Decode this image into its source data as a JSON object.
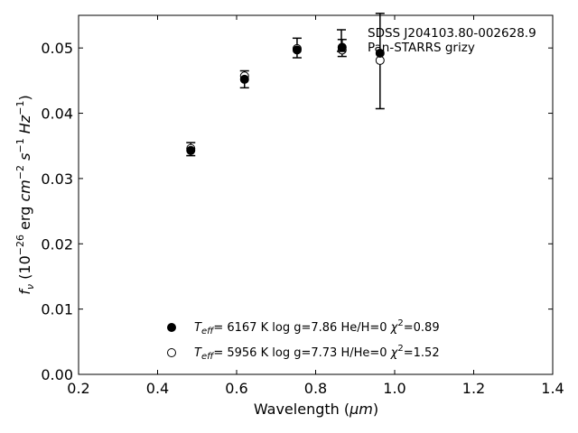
{
  "chart_data": {
    "type": "scatter",
    "xlabel_text": "Wavelength (",
    "xlabel_unit": "μm",
    "xlabel_close": ")",
    "ylabel": "f_ν (10^−26 erg cm^−2 s^−1 Hz^−1)",
    "xlim": [
      0.2,
      1.4
    ],
    "ylim": [
      0.0,
      0.055
    ],
    "x_ticks": [
      0.2,
      0.4,
      0.6,
      0.8,
      1.0,
      1.2,
      1.4
    ],
    "x_tick_labels": [
      "0.2",
      "0.4",
      "0.6",
      "0.8",
      "1.0",
      "1.2",
      "1.4"
    ],
    "y_ticks": [
      0.0,
      0.01,
      0.02,
      0.03,
      0.04,
      0.05
    ],
    "y_tick_labels": [
      "0.00",
      "0.01",
      "0.02",
      "0.03",
      "0.04",
      "0.05"
    ],
    "grid": false,
    "legend_position": "top-right",
    "observed": {
      "name_line1": "SDSS J204103.80-002628.9",
      "name_line2": "Pan-STARRS grizy",
      "x": [
        0.484,
        0.62,
        0.753,
        0.867,
        0.963
      ],
      "y": [
        0.0345,
        0.0452,
        0.05,
        0.05,
        0.048
      ],
      "yerr": [
        0.001,
        0.0013,
        0.0015,
        0.0013,
        0.0073
      ]
    },
    "models": [
      {
        "marker": "filled",
        "x": [
          0.484,
          0.62,
          0.753,
          0.867,
          0.963
        ],
        "y": [
          0.0343,
          0.0452,
          0.0497,
          0.0501,
          0.0492
        ],
        "teff": "6167 K",
        "logg": "log g=7.86",
        "composition": "He/H=0",
        "chi2": "=0.89"
      },
      {
        "marker": "open",
        "x": [
          0.484,
          0.62,
          0.753,
          0.867,
          0.963
        ],
        "y": [
          0.0346,
          0.0457,
          0.0499,
          0.0497,
          0.0481
        ],
        "teff": "5956 K",
        "logg": "log g=7.73",
        "composition": "H/He=0",
        "chi2": "=1.52"
      }
    ]
  }
}
